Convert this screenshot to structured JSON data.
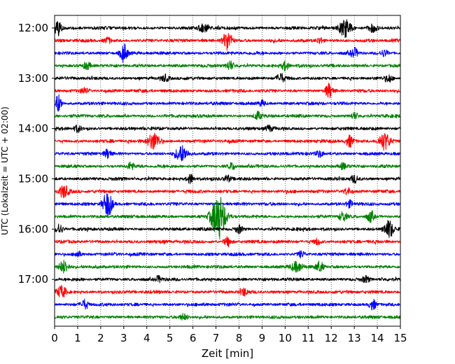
{
  "chart_data": {
    "type": "line",
    "title": "",
    "xlabel": "Zeit  [min]",
    "ylabel": "UTC (Lokalzeit = UTC + 02:00)",
    "xlim": [
      0,
      15
    ],
    "x_ticks": [
      "0",
      "1",
      "2",
      "3",
      "4",
      "5",
      "6",
      "7",
      "8",
      "9",
      "10",
      "11",
      "12",
      "13",
      "14",
      "15"
    ],
    "y_ticks": [
      "12:00",
      "13:00",
      "14:00",
      "15:00",
      "16:00",
      "17:00"
    ],
    "grid": "vertical dotted lines at each minute",
    "trace_minutes": 15,
    "color_cycle": [
      "#000000",
      "#ff0000",
      "#0000ff",
      "#008000"
    ],
    "series": [
      {
        "start": "12:00",
        "color": "#000000",
        "events": [
          {
            "t": 0.15,
            "amp": 0.8,
            "dur": 0.3
          },
          {
            "t": 6.5,
            "amp": 0.35,
            "dur": 0.5
          },
          {
            "t": 12.6,
            "amp": 0.9,
            "dur": 0.5
          },
          {
            "t": 13.8,
            "amp": 0.4,
            "dur": 0.4
          }
        ]
      },
      {
        "start": "12:15",
        "color": "#ff0000",
        "events": [
          {
            "t": 2.3,
            "amp": 0.3,
            "dur": 0.3
          },
          {
            "t": 7.5,
            "amp": 1.0,
            "dur": 0.4
          },
          {
            "t": 11.5,
            "amp": 0.3,
            "dur": 0.3
          }
        ]
      },
      {
        "start": "12:30",
        "color": "#0000ff",
        "events": [
          {
            "t": 3.0,
            "amp": 0.9,
            "dur": 0.3
          },
          {
            "t": 13.0,
            "amp": 0.45,
            "dur": 0.3
          },
          {
            "t": 14.3,
            "amp": 0.3,
            "dur": 0.3
          }
        ]
      },
      {
        "start": "12:45",
        "color": "#008000",
        "events": [
          {
            "t": 1.4,
            "amp": 0.35,
            "dur": 0.3
          },
          {
            "t": 7.6,
            "amp": 0.45,
            "dur": 0.3
          },
          {
            "t": 10.0,
            "amp": 0.45,
            "dur": 0.3
          }
        ]
      },
      {
        "start": "13:00",
        "color": "#000000",
        "events": [
          {
            "t": 4.8,
            "amp": 0.3,
            "dur": 0.3
          },
          {
            "t": 9.8,
            "amp": 0.45,
            "dur": 0.3
          },
          {
            "t": 14.5,
            "amp": 0.35,
            "dur": 0.3
          }
        ]
      },
      {
        "start": "13:15",
        "color": "#ff0000",
        "events": [
          {
            "t": 1.3,
            "amp": 0.3,
            "dur": 0.3
          },
          {
            "t": 11.9,
            "amp": 0.7,
            "dur": 0.3
          }
        ]
      },
      {
        "start": "13:30",
        "color": "#0000ff",
        "events": [
          {
            "t": 0.15,
            "amp": 0.9,
            "dur": 0.3
          },
          {
            "t": 9.0,
            "amp": 0.3,
            "dur": 0.3
          }
        ]
      },
      {
        "start": "13:45",
        "color": "#008000",
        "events": [
          {
            "t": 8.8,
            "amp": 0.4,
            "dur": 0.3
          },
          {
            "t": 13.0,
            "amp": 0.3,
            "dur": 0.3
          }
        ]
      },
      {
        "start": "14:00",
        "color": "#000000",
        "events": [
          {
            "t": 1.0,
            "amp": 0.35,
            "dur": 0.3
          },
          {
            "t": 9.3,
            "amp": 0.3,
            "dur": 0.3
          }
        ]
      },
      {
        "start": "14:15",
        "color": "#ff0000",
        "events": [
          {
            "t": 4.3,
            "amp": 0.85,
            "dur": 0.5
          },
          {
            "t": 12.8,
            "amp": 0.55,
            "dur": 0.3
          },
          {
            "t": 14.3,
            "amp": 0.85,
            "dur": 0.5
          }
        ]
      },
      {
        "start": "14:30",
        "color": "#0000ff",
        "events": [
          {
            "t": 2.3,
            "amp": 0.45,
            "dur": 0.3
          },
          {
            "t": 5.5,
            "amp": 0.75,
            "dur": 0.5
          },
          {
            "t": 11.5,
            "amp": 0.3,
            "dur": 0.3
          }
        ]
      },
      {
        "start": "14:45",
        "color": "#008000",
        "events": [
          {
            "t": 3.3,
            "amp": 0.35,
            "dur": 0.3
          },
          {
            "t": 7.7,
            "amp": 0.3,
            "dur": 0.3
          },
          {
            "t": 12.5,
            "amp": 0.3,
            "dur": 0.3
          }
        ]
      },
      {
        "start": "15:00",
        "color": "#000000",
        "events": [
          {
            "t": 5.9,
            "amp": 0.45,
            "dur": 0.3
          },
          {
            "t": 7.5,
            "amp": 0.35,
            "dur": 0.3
          },
          {
            "t": 13.0,
            "amp": 0.4,
            "dur": 0.3
          }
        ]
      },
      {
        "start": "15:15",
        "color": "#ff0000",
        "events": [
          {
            "t": 0.4,
            "amp": 0.6,
            "dur": 0.4
          },
          {
            "t": 12.7,
            "amp": 0.35,
            "dur": 0.3
          }
        ]
      },
      {
        "start": "15:30",
        "color": "#0000ff",
        "events": [
          {
            "t": 2.3,
            "amp": 1.3,
            "dur": 0.4
          },
          {
            "t": 12.8,
            "amp": 0.35,
            "dur": 0.3
          }
        ]
      },
      {
        "start": "15:45",
        "color": "#008000",
        "events": [
          {
            "t": 7.1,
            "amp": 2.3,
            "dur": 0.6
          },
          {
            "t": 12.5,
            "amp": 0.45,
            "dur": 0.3
          },
          {
            "t": 13.7,
            "amp": 0.55,
            "dur": 0.3
          }
        ]
      },
      {
        "start": "16:00",
        "color": "#000000",
        "events": [
          {
            "t": 0.2,
            "amp": 0.5,
            "dur": 0.3
          },
          {
            "t": 8.0,
            "amp": 0.4,
            "dur": 0.3
          },
          {
            "t": 14.5,
            "amp": 0.85,
            "dur": 0.4
          }
        ]
      },
      {
        "start": "16:15",
        "color": "#ff0000",
        "events": [
          {
            "t": 7.5,
            "amp": 0.45,
            "dur": 0.3
          },
          {
            "t": 11.4,
            "amp": 0.3,
            "dur": 0.3
          }
        ]
      },
      {
        "start": "16:30",
        "color": "#0000ff",
        "events": [
          {
            "t": 1.0,
            "amp": 0.3,
            "dur": 0.3
          },
          {
            "t": 10.7,
            "amp": 0.3,
            "dur": 0.3
          }
        ]
      },
      {
        "start": "16:45",
        "color": "#008000",
        "events": [
          {
            "t": 0.4,
            "amp": 0.6,
            "dur": 0.4
          },
          {
            "t": 10.5,
            "amp": 0.5,
            "dur": 0.5
          },
          {
            "t": 11.5,
            "amp": 0.5,
            "dur": 0.3
          }
        ]
      },
      {
        "start": "17:00",
        "color": "#000000",
        "events": [
          {
            "t": 4.5,
            "amp": 0.3,
            "dur": 0.3
          },
          {
            "t": 13.5,
            "amp": 0.3,
            "dur": 0.3
          }
        ]
      },
      {
        "start": "17:15",
        "color": "#ff0000",
        "events": [
          {
            "t": 0.3,
            "amp": 0.55,
            "dur": 0.4
          },
          {
            "t": 8.2,
            "amp": 0.35,
            "dur": 0.3
          }
        ]
      },
      {
        "start": "17:30",
        "color": "#0000ff",
        "events": [
          {
            "t": 1.3,
            "amp": 0.45,
            "dur": 0.3
          },
          {
            "t": 13.8,
            "amp": 0.5,
            "dur": 0.3
          }
        ]
      },
      {
        "start": "17:45",
        "color": "#008000",
        "events": [
          {
            "t": 5.6,
            "amp": 0.25,
            "dur": 0.3
          }
        ]
      }
    ]
  }
}
